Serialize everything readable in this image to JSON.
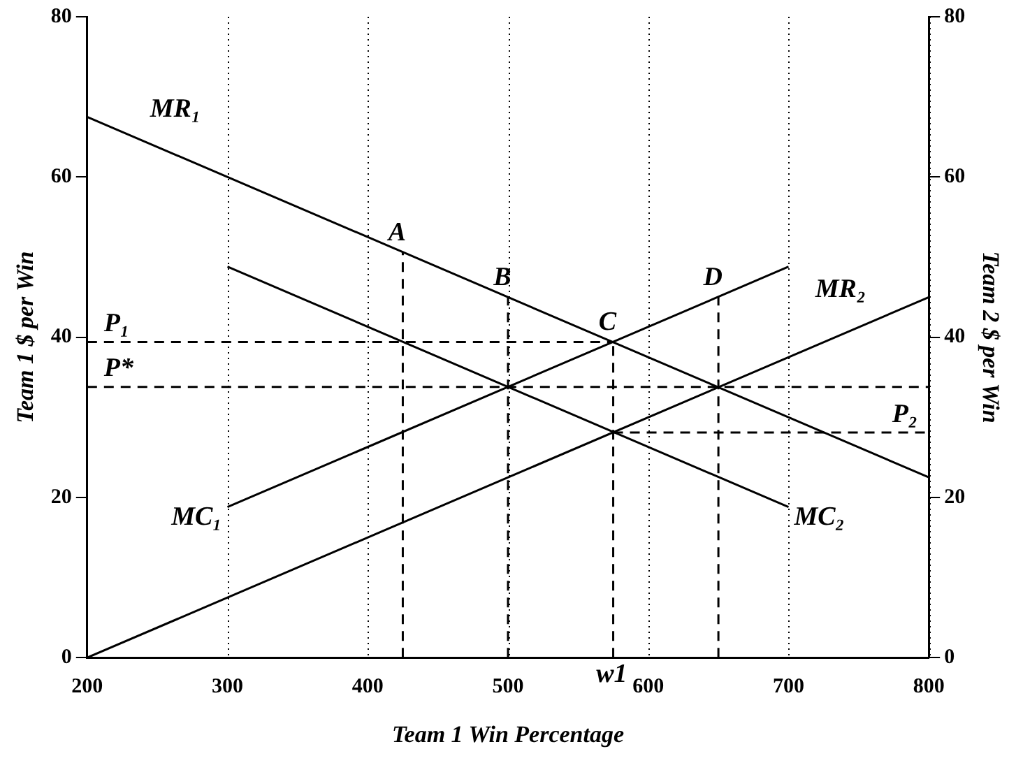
{
  "chart_data": {
    "type": "line",
    "xlabel": "Team 1 Win Percentage",
    "ylabel": "Team 1 $ per Win",
    "y2label": "Team 2 $ per Win",
    "xlim": [
      200,
      800
    ],
    "xticks": [
      200,
      300,
      400,
      500,
      600,
      700,
      800
    ],
    "ylim": [
      0,
      80
    ],
    "yticks": [
      0,
      20,
      40,
      60,
      80
    ],
    "y2lim": [
      0,
      80
    ],
    "y2ticks": [
      0,
      20,
      40,
      60,
      80
    ],
    "grid": "x",
    "legend": false,
    "marker": "none",
    "series": [
      {
        "name": "MR₁",
        "color": "#000000",
        "x": [
          200,
          800
        ],
        "values": [
          67.5,
          22.5
        ],
        "line_style": "solid"
      },
      {
        "name": "MC₁",
        "color": "#000000",
        "x": [
          300,
          700
        ],
        "values": [
          18.8,
          48.8
        ],
        "line_style": "solid"
      },
      {
        "name": "MC₂",
        "color": "#000000",
        "x": [
          300,
          700
        ],
        "values": [
          48.8,
          18.8
        ],
        "line_style": "solid",
        "axis": "y2"
      },
      {
        "name": "MR₂",
        "color": "#000000",
        "x": [
          200,
          800
        ],
        "values": [
          0,
          45
        ],
        "line_style": "solid",
        "axis": "y2"
      },
      {
        "color": "#000000",
        "x": [
          200,
          575
        ],
        "values": [
          39.4,
          39.4
        ],
        "line_style": "dashed"
      },
      {
        "color": "#000000",
        "x": [
          200,
          800
        ],
        "values": [
          33.8,
          33.8
        ],
        "line_style": "dashed"
      },
      {
        "color": "#000000",
        "x": [
          575,
          800
        ],
        "values": [
          28.1,
          28.1
        ],
        "line_style": "dashed",
        "axis": "y2"
      },
      {
        "color": "#000000",
        "x": [
          425,
          425
        ],
        "values": [
          0,
          50.6
        ],
        "line_style": "dashed"
      },
      {
        "color": "#000000",
        "x": [
          500,
          500
        ],
        "values": [
          0,
          45
        ],
        "line_style": "dashed"
      },
      {
        "color": "#000000",
        "x": [
          575,
          575
        ],
        "values": [
          0,
          39.4
        ],
        "line_style": "dashed"
      },
      {
        "color": "#000000",
        "x": [
          650,
          650
        ],
        "values": [
          0,
          45
        ],
        "line_style": "dashed"
      }
    ],
    "annotations": [
      {
        "text": "A",
        "x": 425,
        "y": 50.6
      },
      {
        "text": "B",
        "x": 500,
        "y": 45
      },
      {
        "text": "C",
        "x": 575,
        "y": 39.4
      },
      {
        "text": "D",
        "x": 650,
        "y": 45
      },
      {
        "text": "P₁",
        "x": 200,
        "y": 39.4
      },
      {
        "text": "P*",
        "x": 200,
        "y": 33.8
      },
      {
        "text": "P₂",
        "x": 800,
        "y": 28.1
      },
      {
        "text": "w1",
        "x": 575,
        "y": 0
      }
    ]
  }
}
